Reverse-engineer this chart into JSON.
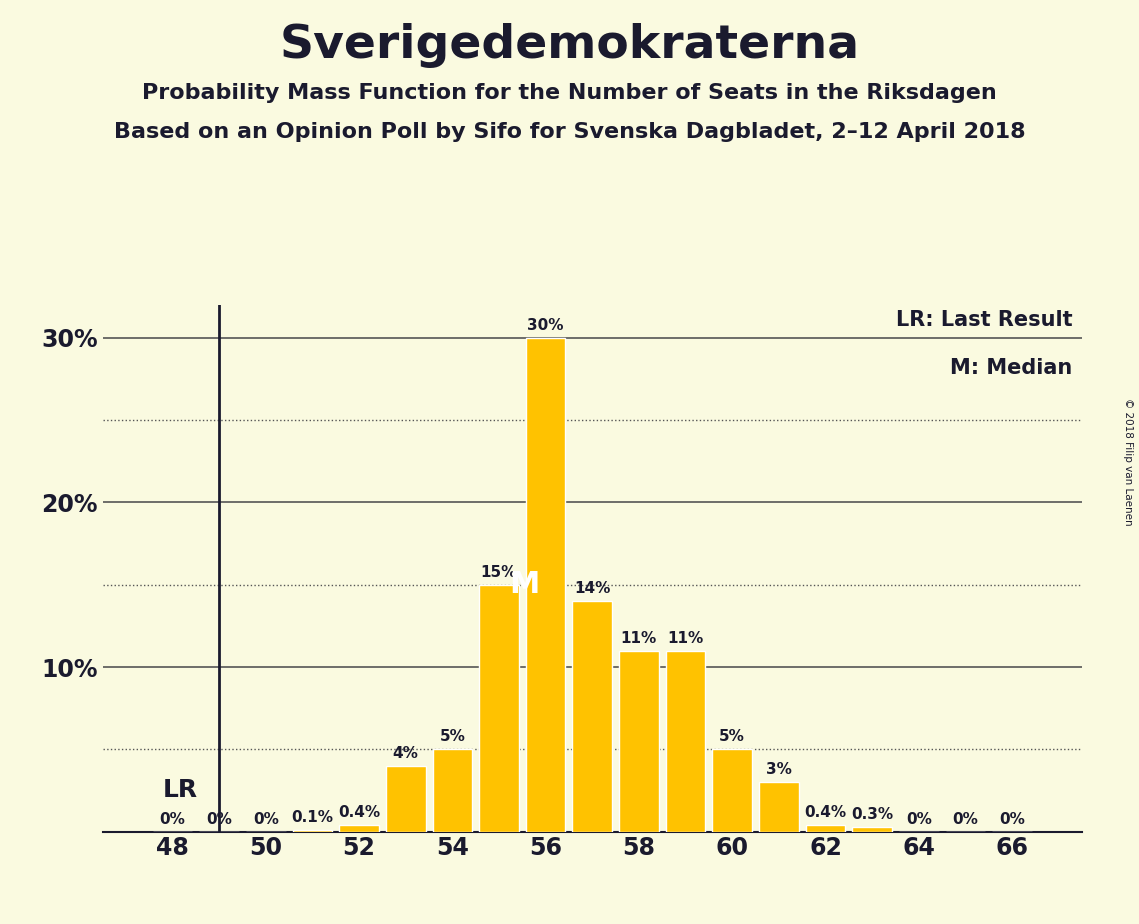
{
  "title": "Sverigedemokraterna",
  "subtitle1": "Probability Mass Function for the Number of Seats in the Riksdagen",
  "subtitle2": "Based on an Opinion Poll by Sifo for Svenska Dagbladet, 2–12 April 2018",
  "copyright": "© 2018 Filip van Laenen",
  "seats": [
    48,
    49,
    50,
    51,
    52,
    53,
    54,
    55,
    56,
    57,
    58,
    59,
    60,
    61,
    62,
    63,
    64,
    65,
    66
  ],
  "probabilities": [
    0.0,
    0.0,
    0.0,
    0.1,
    0.4,
    4.0,
    5.0,
    15.0,
    30.0,
    14.0,
    11.0,
    11.0,
    5.0,
    3.0,
    0.4,
    0.3,
    0.0,
    0.0,
    0.0
  ],
  "bar_color": "#FFC200",
  "background_color": "#FAFAE0",
  "text_color": "#1a1a2e",
  "label_color": "#1a1a2e",
  "grid_color": "#555555",
  "LR_seat": 49,
  "median_seat": 56,
  "ylim": [
    0,
    32
  ],
  "yticks": [
    10,
    20,
    30
  ],
  "ytick_labels": [
    "10%",
    "20%",
    "30%"
  ],
  "dotted_yticks": [
    5,
    15,
    25
  ],
  "xtick_min": 48,
  "xtick_max": 66,
  "xtick_step": 2,
  "xlim_left": 46.5,
  "xlim_right": 67.5
}
